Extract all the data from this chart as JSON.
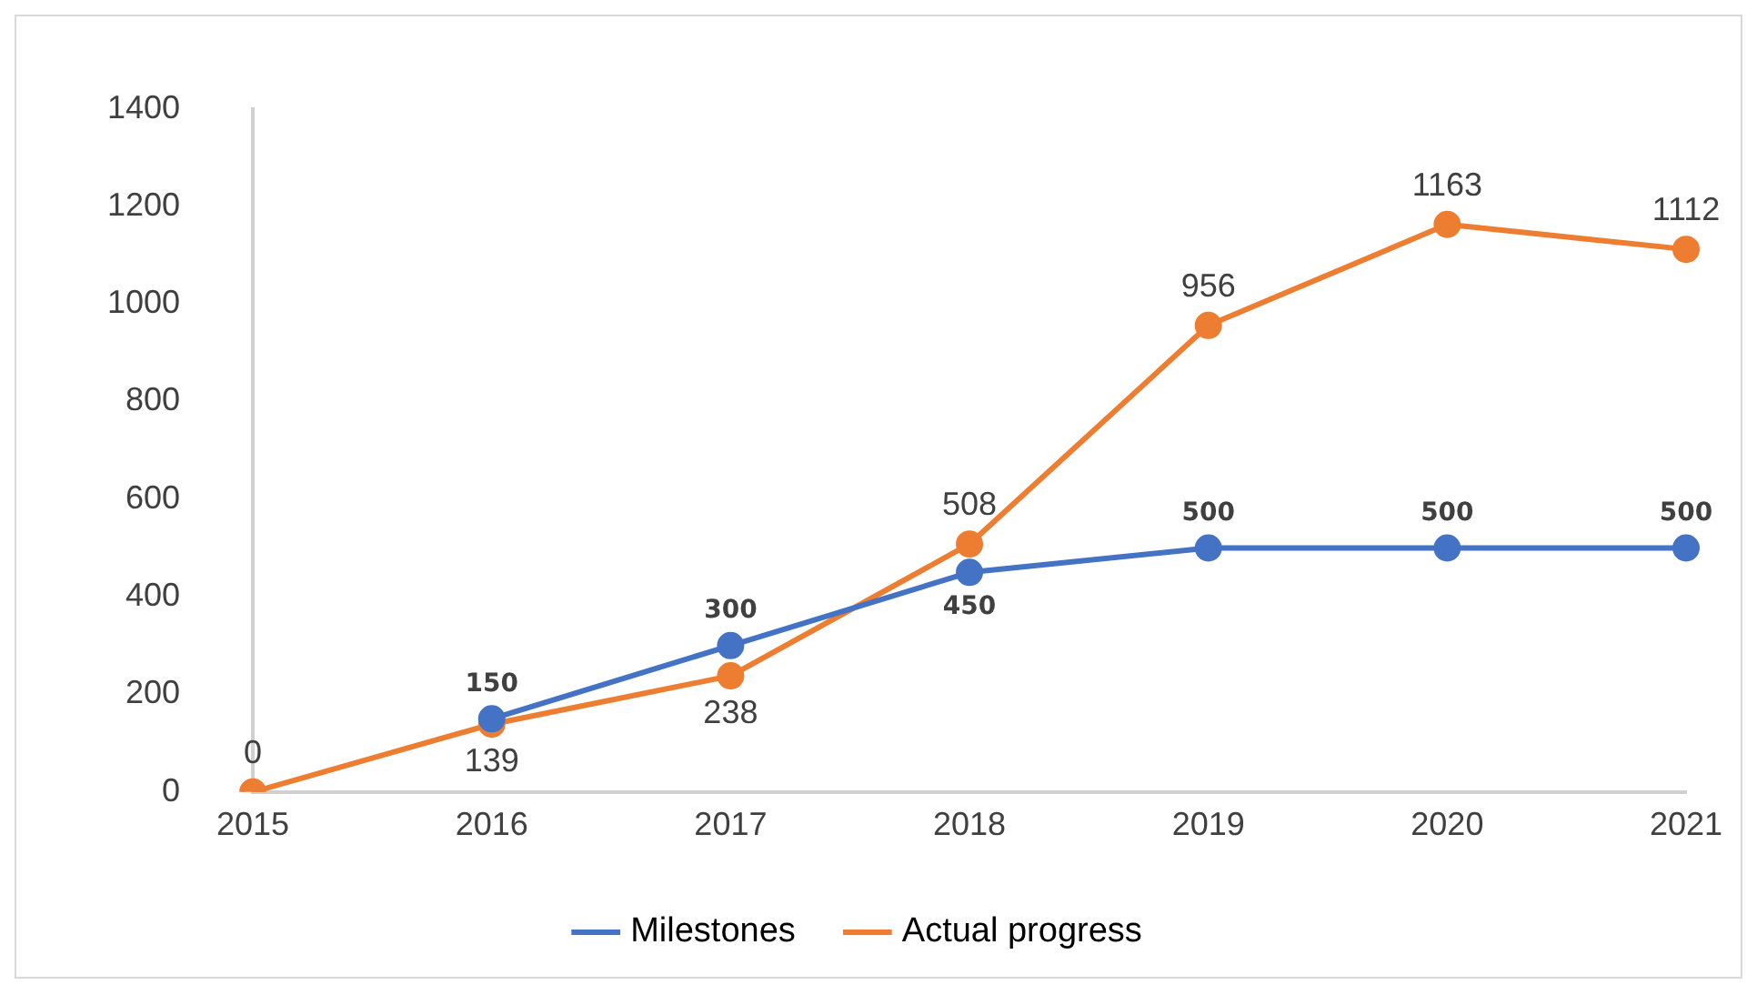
{
  "chart_data": {
    "type": "line",
    "categories": [
      "2015",
      "2016",
      "2017",
      "2018",
      "2019",
      "2020",
      "2021"
    ],
    "series": [
      {
        "name": "Milestones",
        "color": "#4472c4",
        "values": [
          null,
          150,
          300,
          450,
          500,
          500,
          500
        ]
      },
      {
        "name": "Actual progress",
        "color": "#ed7d31",
        "values": [
          0,
          139,
          238,
          508,
          956,
          1163,
          1112
        ]
      }
    ],
    "ylim": [
      0,
      1400
    ],
    "yticks": [
      0,
      200,
      400,
      600,
      800,
      1000,
      1200,
      1400
    ],
    "grid": false,
    "legend": "bottom",
    "marker": "circle",
    "line_style": "solid",
    "data_labels": true
  }
}
